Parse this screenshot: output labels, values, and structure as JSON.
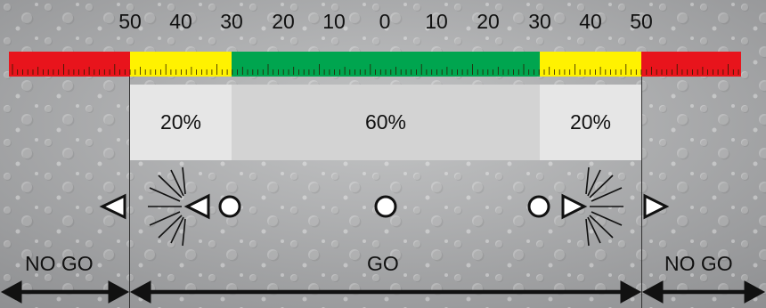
{
  "scale": {
    "labels": [
      "50",
      "40",
      "30",
      "20",
      "10",
      "0",
      "10",
      "20",
      "30",
      "40",
      "50"
    ]
  },
  "bands": [
    {
      "name": "no-go-left",
      "color": "#e8141c"
    },
    {
      "name": "warn-left",
      "color": "#fff200"
    },
    {
      "name": "ok",
      "color": "#00a54f"
    },
    {
      "name": "warn-right",
      "color": "#fff200"
    },
    {
      "name": "no-go-right",
      "color": "#e8141c"
    }
  ],
  "zones": {
    "left_pct": "20%",
    "center_pct": "60%",
    "right_pct": "20%"
  },
  "labels": {
    "no_go_left": "NO GO",
    "go": "GO",
    "no_go_right": "NO GO"
  },
  "colors": {
    "zone_outer": "#e6e6e6",
    "zone_center": "#d3d3d3",
    "arrow": "#111111",
    "symbol_fill": "#ffffff"
  },
  "icons": [
    "triangle-left-icon",
    "blinking-triangle-left-icon",
    "circle-icon",
    "blinking-triangle-right-icon",
    "triangle-right-icon",
    "double-arrow-icon"
  ]
}
